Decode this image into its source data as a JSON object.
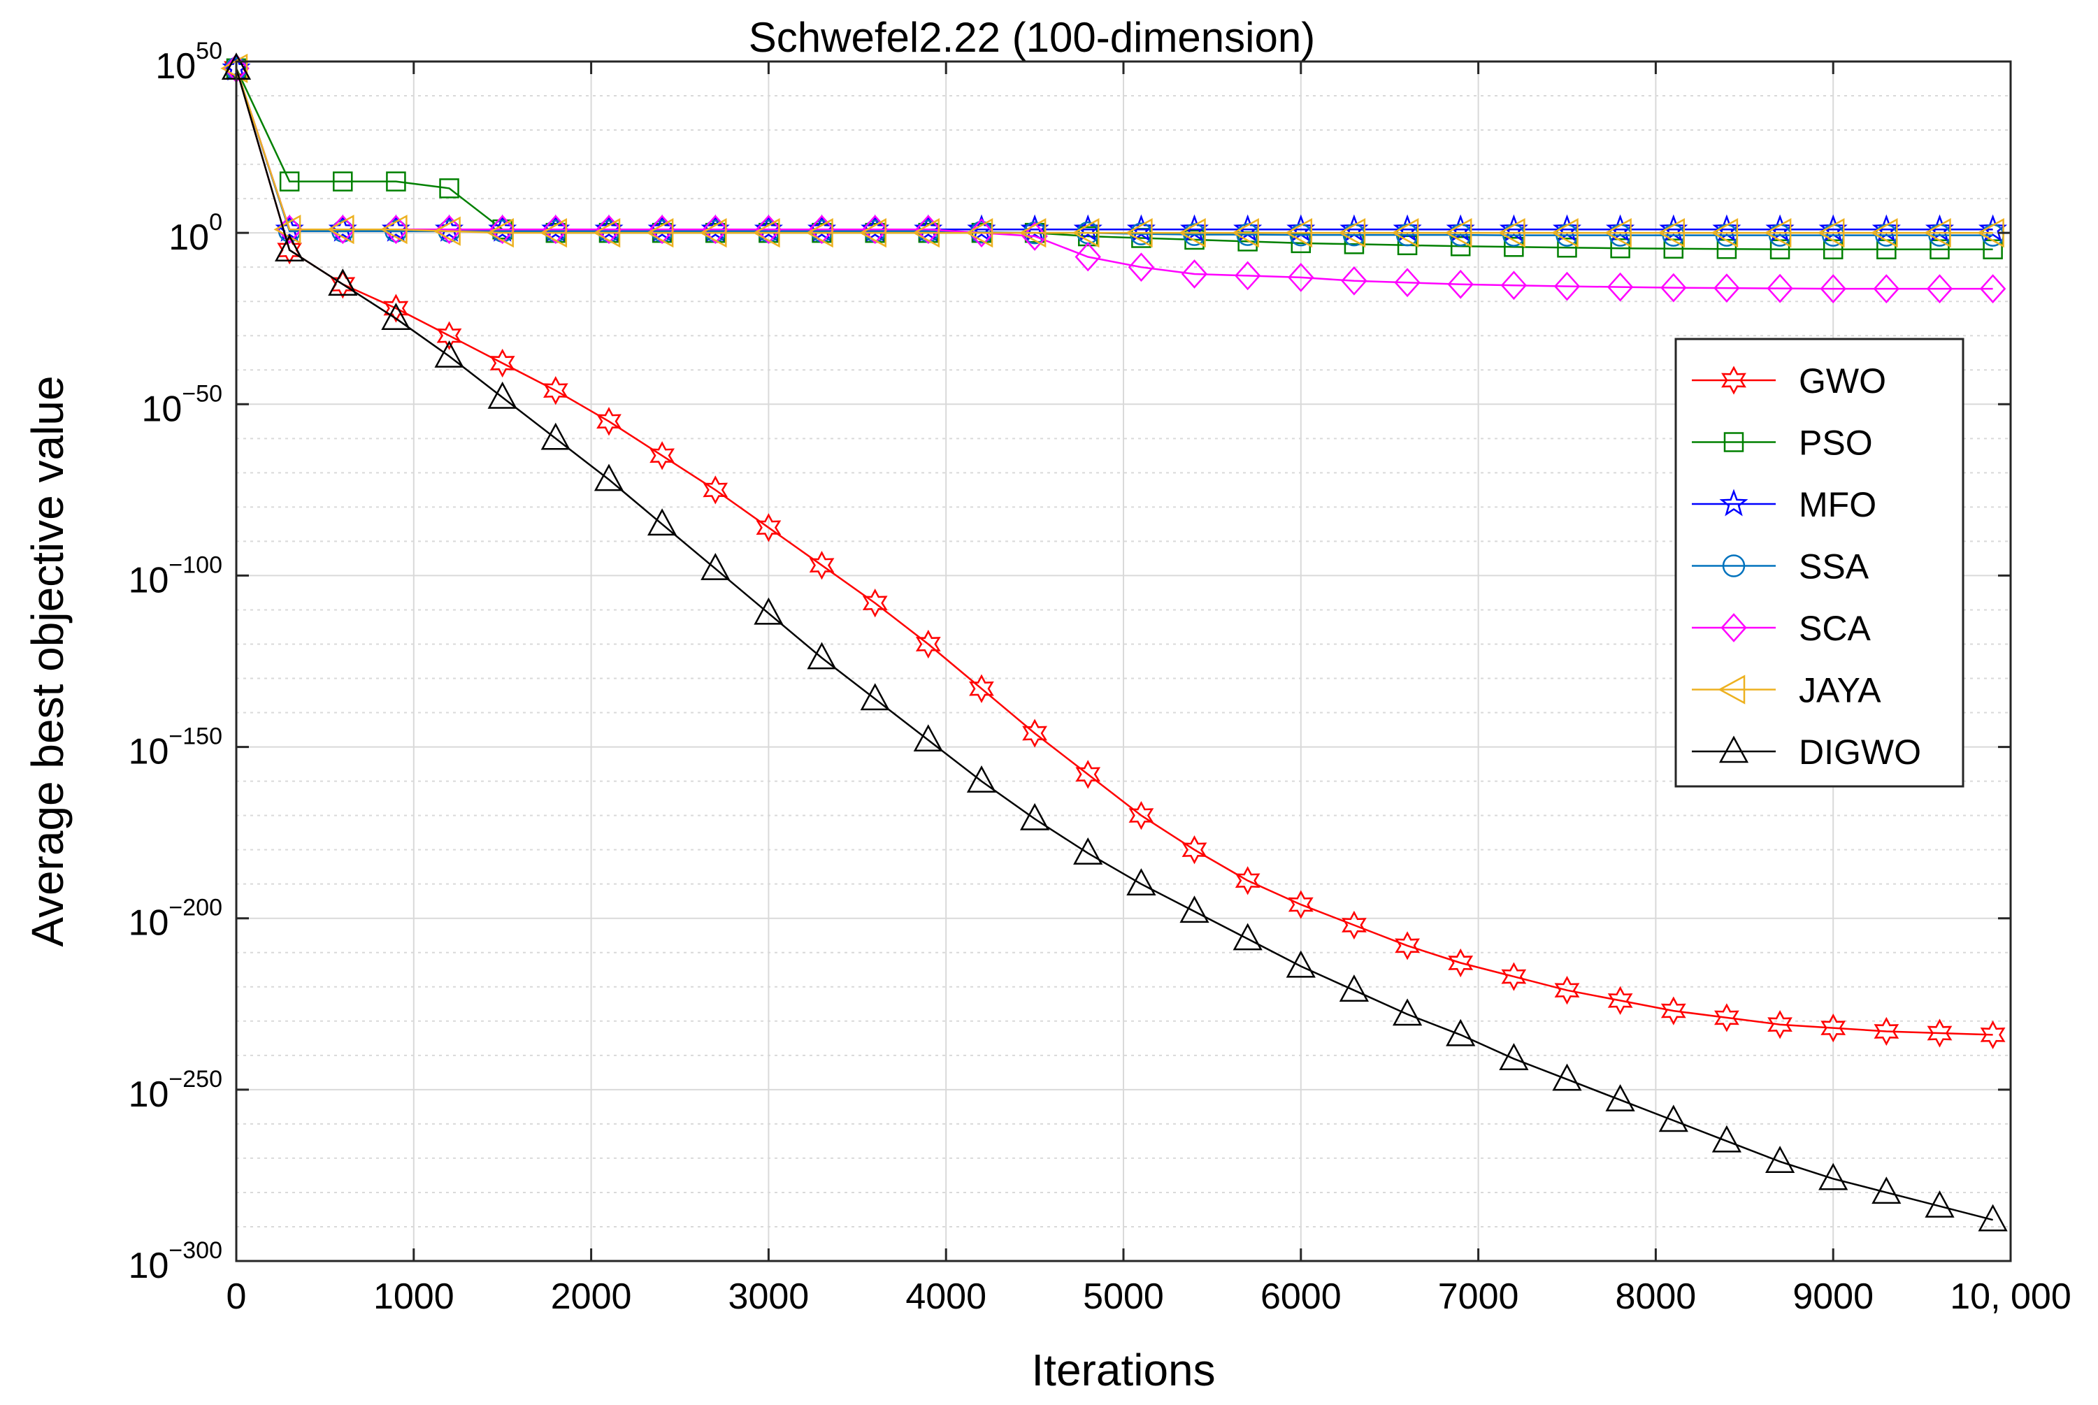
{
  "chart_data": {
    "type": "line",
    "title": "Schwefel2.22 (100-dimension)",
    "xlabel": "Iterations",
    "ylabel": "Average best objective value",
    "xlim": [
      0,
      10000
    ],
    "ylim_log10": [
      -300,
      50
    ],
    "y_scale": "log",
    "grid": true,
    "legend_position": "right",
    "x_ticks": [
      0,
      1000,
      2000,
      3000,
      4000,
      5000,
      6000,
      7000,
      8000,
      9000,
      10000
    ],
    "x_tick_labels": [
      "0",
      "1000",
      "2000",
      "3000",
      "4000",
      "5000",
      "6000",
      "7000",
      "8000",
      "9000",
      "10, 000"
    ],
    "y_ticks_log10": [
      50,
      0,
      -50,
      -100,
      -150,
      -200,
      -250,
      -300
    ],
    "y_tick_labels": [
      {
        "base": "10",
        "exp": "50"
      },
      {
        "base": "10",
        "exp": "0"
      },
      {
        "base": "10",
        "exp": "−50"
      },
      {
        "base": "10",
        "exp": "−100"
      },
      {
        "base": "10",
        "exp": "−150"
      },
      {
        "base": "10",
        "exp": "−200"
      },
      {
        "base": "10",
        "exp": "−250"
      },
      {
        "base": "10",
        "exp": "−300"
      }
    ],
    "series": [
      {
        "name": "GWO",
        "color": "#ff0000",
        "marker": "hexagram",
        "x": [
          0,
          300,
          600,
          900,
          1200,
          1500,
          1800,
          2100,
          2400,
          2700,
          3000,
          3300,
          3600,
          3900,
          4200,
          4500,
          4800,
          5100,
          5400,
          5700,
          6000,
          6300,
          6600,
          6900,
          7200,
          7500,
          7800,
          8100,
          8400,
          8700,
          9000,
          9300,
          9600,
          9900
        ],
        "y_log10": [
          48,
          -5,
          -15,
          -22,
          -30,
          -38,
          -46,
          -55,
          -65,
          -75,
          -86,
          -97,
          -108,
          -120,
          -133,
          -146,
          -158,
          -170,
          -180,
          -189,
          -196,
          -202,
          -208,
          -213,
          -217,
          -221,
          -224,
          -227,
          -229,
          -231,
          -232,
          -233,
          -233.5,
          -234
        ]
      },
      {
        "name": "PSO",
        "color": "#008000",
        "marker": "square",
        "x": [
          0,
          300,
          600,
          900,
          1200,
          1500,
          1800,
          2100,
          2400,
          2700,
          3000,
          3300,
          3600,
          3900,
          4200,
          4500,
          4800,
          5100,
          5400,
          5700,
          6000,
          6300,
          6600,
          6900,
          7200,
          7500,
          7800,
          8100,
          8400,
          8700,
          9000,
          9300,
          9600,
          9900
        ],
        "y_log10": [
          48,
          15,
          15,
          15,
          13,
          1,
          0,
          0,
          0,
          0,
          0,
          0,
          0,
          0,
          0,
          0,
          -1,
          -1.5,
          -2,
          -2.5,
          -3,
          -3.3,
          -3.6,
          -3.9,
          -4.1,
          -4.3,
          -4.5,
          -4.6,
          -4.7,
          -4.8,
          -4.8,
          -4.8,
          -4.8,
          -4.8
        ]
      },
      {
        "name": "MFO",
        "color": "#0000ff",
        "marker": "pentagram",
        "x": [
          0,
          300,
          600,
          900,
          1200,
          1500,
          1800,
          2100,
          2400,
          2700,
          3000,
          3300,
          3600,
          3900,
          4200,
          4500,
          4800,
          5100,
          5400,
          5700,
          6000,
          6300,
          6600,
          6900,
          7200,
          7500,
          7800,
          8100,
          8400,
          8700,
          9000,
          9300,
          9600,
          9900
        ],
        "y_log10": [
          48,
          1,
          1,
          1,
          1,
          1,
          1,
          1,
          1,
          1,
          1,
          1,
          1,
          1,
          1,
          1,
          1,
          1,
          1,
          1,
          1,
          1,
          1,
          1,
          1,
          1,
          1,
          1,
          1,
          1,
          1,
          1,
          1,
          1
        ]
      },
      {
        "name": "SSA",
        "color": "#0072bd",
        "marker": "circle",
        "x": [
          0,
          300,
          600,
          900,
          1200,
          1500,
          1800,
          2100,
          2400,
          2700,
          3000,
          3300,
          3600,
          3900,
          4200,
          4500,
          4800,
          5100,
          5400,
          5700,
          6000,
          6300,
          6600,
          6900,
          7200,
          7500,
          7800,
          8100,
          8400,
          8700,
          9000,
          9300,
          9600,
          9900
        ],
        "y_log10": [
          48,
          0.5,
          0.5,
          0.5,
          0.5,
          0.5,
          0.5,
          0.5,
          0.5,
          0.5,
          0.5,
          0.5,
          0.5,
          0.5,
          0.2,
          0,
          0,
          -0.3,
          -0.5,
          -0.5,
          -0.6,
          -0.6,
          -0.6,
          -0.6,
          -0.7,
          -0.7,
          -0.7,
          -0.7,
          -0.7,
          -0.7,
          -0.7,
          -0.7,
          -0.7,
          -0.7
        ]
      },
      {
        "name": "SCA",
        "color": "#ff00ff",
        "marker": "diamond",
        "x": [
          0,
          300,
          600,
          900,
          1200,
          1500,
          1800,
          2100,
          2400,
          2700,
          3000,
          3300,
          3600,
          3900,
          4200,
          4500,
          4800,
          5100,
          5400,
          5700,
          6000,
          6300,
          6600,
          6900,
          7200,
          7500,
          7800,
          8100,
          8400,
          8700,
          9000,
          9300,
          9600,
          9900
        ],
        "y_log10": [
          48,
          1,
          1,
          1,
          1,
          1,
          1,
          1,
          1,
          1,
          1,
          1,
          1,
          1,
          0,
          -1,
          -7,
          -10,
          -12,
          -12.5,
          -13,
          -14,
          -14.5,
          -15,
          -15.3,
          -15.6,
          -15.8,
          -16,
          -16.1,
          -16.2,
          -16.3,
          -16.3,
          -16.3,
          -16.3
        ]
      },
      {
        "name": "JAYA",
        "color": "#edb120",
        "marker": "triangle-left",
        "x": [
          0,
          300,
          600,
          900,
          1200,
          1500,
          1800,
          2100,
          2400,
          2700,
          3000,
          3300,
          3600,
          3900,
          4200,
          4500,
          4800,
          5100,
          5400,
          5700,
          6000,
          6300,
          6600,
          6900,
          7200,
          7500,
          7800,
          8100,
          8400,
          8700,
          9000,
          9300,
          9600,
          9900
        ],
        "y_log10": [
          48,
          1,
          1,
          1,
          0.5,
          0,
          0,
          0,
          0,
          0,
          0,
          0,
          0,
          0,
          0,
          0,
          0,
          0,
          0,
          0,
          0,
          0,
          0,
          0,
          0,
          0,
          0,
          0,
          0,
          0,
          0,
          0,
          0,
          0
        ]
      },
      {
        "name": "DIGWO",
        "color": "#000000",
        "marker": "triangle-up",
        "x": [
          0,
          300,
          600,
          900,
          1200,
          1500,
          1800,
          2100,
          2400,
          2700,
          3000,
          3300,
          3600,
          3900,
          4200,
          4500,
          4800,
          5100,
          5400,
          5700,
          6000,
          6300,
          6600,
          6900,
          7200,
          7500,
          7800,
          8100,
          8400,
          8700,
          9000,
          9300,
          9600,
          9900
        ],
        "y_log10": [
          48,
          -5,
          -15,
          -25,
          -36,
          -48,
          -60,
          -72,
          -85,
          -98,
          -111,
          -124,
          -136,
          -148,
          -160,
          -171,
          -181,
          -190,
          -198,
          -206,
          -214,
          -221,
          -228,
          -234,
          -241,
          -247,
          -253,
          -259,
          -265,
          -271,
          -276,
          -280,
          -284,
          -288
        ]
      }
    ]
  }
}
